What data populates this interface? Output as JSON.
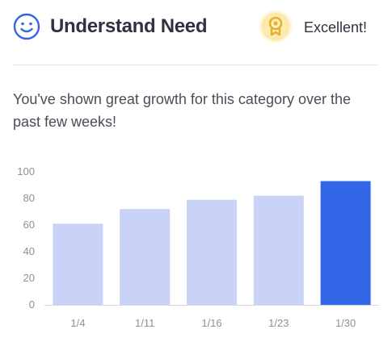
{
  "header": {
    "title": "Understand Need",
    "title_icon": "smiley-face-icon",
    "badge_icon": "award-ribbon-icon",
    "badge_label": "Excellent!"
  },
  "message": "You've shown great growth for this category over the past few weeks!",
  "colors": {
    "accent": "#3366e6",
    "bar_light": "#c9d3f8",
    "badge_gold": "#e3b12d"
  },
  "chart_data": {
    "type": "bar",
    "categories": [
      "1/4",
      "1/11",
      "1/16",
      "1/23",
      "1/30"
    ],
    "values": [
      61,
      72,
      79,
      82,
      93
    ],
    "highlight_index": 4,
    "ylim": [
      0,
      100
    ],
    "yticks": [
      0,
      20,
      40,
      60,
      80,
      100
    ],
    "grid": false,
    "title": "",
    "xlabel": "",
    "ylabel": ""
  }
}
